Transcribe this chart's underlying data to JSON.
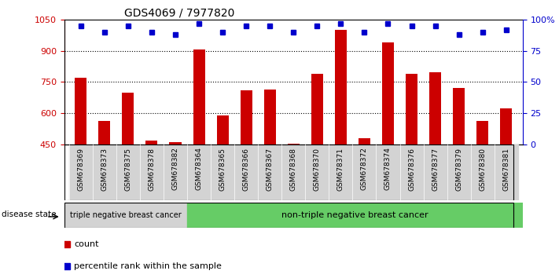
{
  "title": "GDS4069 / 7977820",
  "samples": [
    "GSM678369",
    "GSM678373",
    "GSM678375",
    "GSM678378",
    "GSM678382",
    "GSM678364",
    "GSM678365",
    "GSM678366",
    "GSM678367",
    "GSM678368",
    "GSM678370",
    "GSM678371",
    "GSM678372",
    "GSM678374",
    "GSM678376",
    "GSM678377",
    "GSM678379",
    "GSM678380",
    "GSM678381"
  ],
  "counts": [
    770,
    565,
    700,
    470,
    460,
    905,
    590,
    710,
    715,
    455,
    790,
    1000,
    480,
    940,
    790,
    795,
    720,
    565,
    625
  ],
  "percentiles": [
    95,
    90,
    95,
    90,
    88,
    97,
    90,
    95,
    95,
    90,
    95,
    97,
    90,
    97,
    95,
    95,
    88,
    90,
    92
  ],
  "triple_negative_count": 5,
  "ylim_left": [
    450,
    1050
  ],
  "ylim_right": [
    0,
    100
  ],
  "yticks_left": [
    450,
    600,
    750,
    900,
    1050
  ],
  "yticks_right": [
    0,
    25,
    50,
    75,
    100
  ],
  "bar_color": "#cc0000",
  "dot_color": "#0000cc",
  "left_axis_color": "#cc0000",
  "right_axis_color": "#0000cc",
  "triple_neg_label": "triple negative breast cancer",
  "non_triple_neg_label": "non-triple negative breast cancer",
  "disease_state_label": "disease state",
  "legend_count": "count",
  "legend_percentile": "percentile rank within the sample",
  "bg_triple": "#d3d3d3",
  "bg_non_triple": "#66cc66"
}
